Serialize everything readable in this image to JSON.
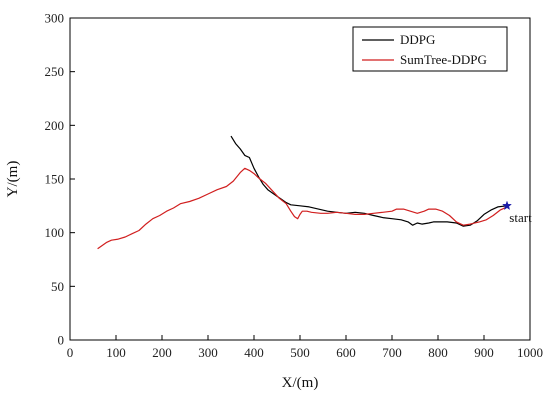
{
  "chart_data": {
    "type": "line",
    "xlabel": "X/(m)",
    "ylabel": "Y/(m)",
    "xlim": [
      0,
      1000
    ],
    "ylim": [
      0,
      300
    ],
    "xticks": [
      0,
      100,
      200,
      300,
      400,
      500,
      600,
      700,
      800,
      900,
      1000
    ],
    "yticks": [
      0,
      50,
      100,
      150,
      200,
      250,
      300
    ],
    "grid": false,
    "legend_position": "top-right",
    "series": [
      {
        "name": "DDPG",
        "color": "#000000",
        "points": [
          [
            950,
            125
          ],
          [
            930,
            124
          ],
          [
            915,
            121
          ],
          [
            900,
            117
          ],
          [
            885,
            111
          ],
          [
            870,
            107
          ],
          [
            855,
            106
          ],
          [
            840,
            109
          ],
          [
            820,
            110
          ],
          [
            800,
            110
          ],
          [
            790,
            110
          ],
          [
            780,
            109
          ],
          [
            765,
            108
          ],
          [
            755,
            109
          ],
          [
            745,
            107
          ],
          [
            735,
            110
          ],
          [
            720,
            112
          ],
          [
            700,
            113
          ],
          [
            680,
            114
          ],
          [
            660,
            116
          ],
          [
            640,
            118
          ],
          [
            620,
            119
          ],
          [
            600,
            118
          ],
          [
            580,
            119
          ],
          [
            560,
            120
          ],
          [
            540,
            122
          ],
          [
            520,
            124
          ],
          [
            500,
            125
          ],
          [
            480,
            126
          ],
          [
            470,
            128
          ],
          [
            460,
            131
          ],
          [
            450,
            134
          ],
          [
            440,
            137
          ],
          [
            430,
            140
          ],
          [
            420,
            145
          ],
          [
            410,
            152
          ],
          [
            400,
            160
          ],
          [
            390,
            170
          ],
          [
            380,
            172
          ],
          [
            370,
            178
          ],
          [
            360,
            183
          ],
          [
            350,
            190
          ]
        ]
      },
      {
        "name": "SumTree-DDPG",
        "color": "#d11f1f",
        "points": [
          [
            950,
            124
          ],
          [
            935,
            121
          ],
          [
            920,
            116
          ],
          [
            905,
            112
          ],
          [
            890,
            110
          ],
          [
            870,
            108
          ],
          [
            855,
            107
          ],
          [
            840,
            110
          ],
          [
            825,
            116
          ],
          [
            810,
            120
          ],
          [
            795,
            122
          ],
          [
            780,
            122
          ],
          [
            770,
            120
          ],
          [
            755,
            118
          ],
          [
            740,
            120
          ],
          [
            725,
            122
          ],
          [
            710,
            122
          ],
          [
            700,
            120
          ],
          [
            680,
            119
          ],
          [
            660,
            118
          ],
          [
            640,
            117
          ],
          [
            620,
            117
          ],
          [
            600,
            118
          ],
          [
            580,
            119
          ],
          [
            560,
            118
          ],
          [
            545,
            118
          ],
          [
            525,
            119
          ],
          [
            515,
            120
          ],
          [
            505,
            120
          ],
          [
            500,
            117
          ],
          [
            495,
            113
          ],
          [
            488,
            115
          ],
          [
            480,
            120
          ],
          [
            470,
            127
          ],
          [
            455,
            132
          ],
          [
            440,
            139
          ],
          [
            425,
            146
          ],
          [
            410,
            151
          ],
          [
            400,
            155
          ],
          [
            390,
            158
          ],
          [
            380,
            160
          ],
          [
            370,
            156
          ],
          [
            355,
            148
          ],
          [
            340,
            143
          ],
          [
            320,
            140
          ],
          [
            300,
            136
          ],
          [
            280,
            132
          ],
          [
            260,
            129
          ],
          [
            240,
            127
          ],
          [
            225,
            123
          ],
          [
            210,
            120
          ],
          [
            195,
            116
          ],
          [
            180,
            113
          ],
          [
            165,
            108
          ],
          [
            150,
            102
          ],
          [
            135,
            99
          ],
          [
            120,
            96
          ],
          [
            105,
            94
          ],
          [
            90,
            93
          ],
          [
            80,
            91
          ],
          [
            70,
            88
          ],
          [
            60,
            85
          ]
        ]
      }
    ],
    "annotations": [
      {
        "text": "start",
        "x": 955,
        "y": 110
      }
    ],
    "markers": [
      {
        "name": "start-star",
        "x": 950,
        "y": 125,
        "color": "#1a1aa8"
      }
    ]
  }
}
